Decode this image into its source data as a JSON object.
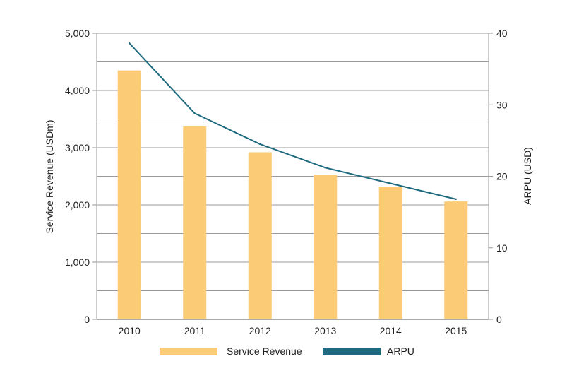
{
  "chart_data": {
    "type": "bar",
    "title": "",
    "categories": [
      "2010",
      "2011",
      "2012",
      "2013",
      "2014",
      "2015"
    ],
    "series": [
      {
        "name": "Service Revenue",
        "type": "bar",
        "axis": "left",
        "color": "#FBCB75",
        "values": [
          4350,
          3370,
          2920,
          2530,
          2310,
          2060
        ]
      },
      {
        "name": "ARPU",
        "type": "line",
        "axis": "right",
        "color": "#1E6A7E",
        "values": [
          38.6,
          28.8,
          24.5,
          21.2,
          19.0,
          16.8
        ]
      }
    ],
    "y_left": {
      "label": "Service Revenue (USDm)",
      "range": [
        0,
        5000
      ],
      "ticks": [
        "0",
        "1,000",
        "2,000",
        "3,000",
        "4,000",
        "5,000"
      ]
    },
    "y_right": {
      "label": "ARPU (USD)",
      "range": [
        0,
        40
      ],
      "ticks": [
        "0",
        "10",
        "20",
        "30",
        "40"
      ]
    },
    "grid": "horizontal",
    "legend_position": "bottom"
  }
}
